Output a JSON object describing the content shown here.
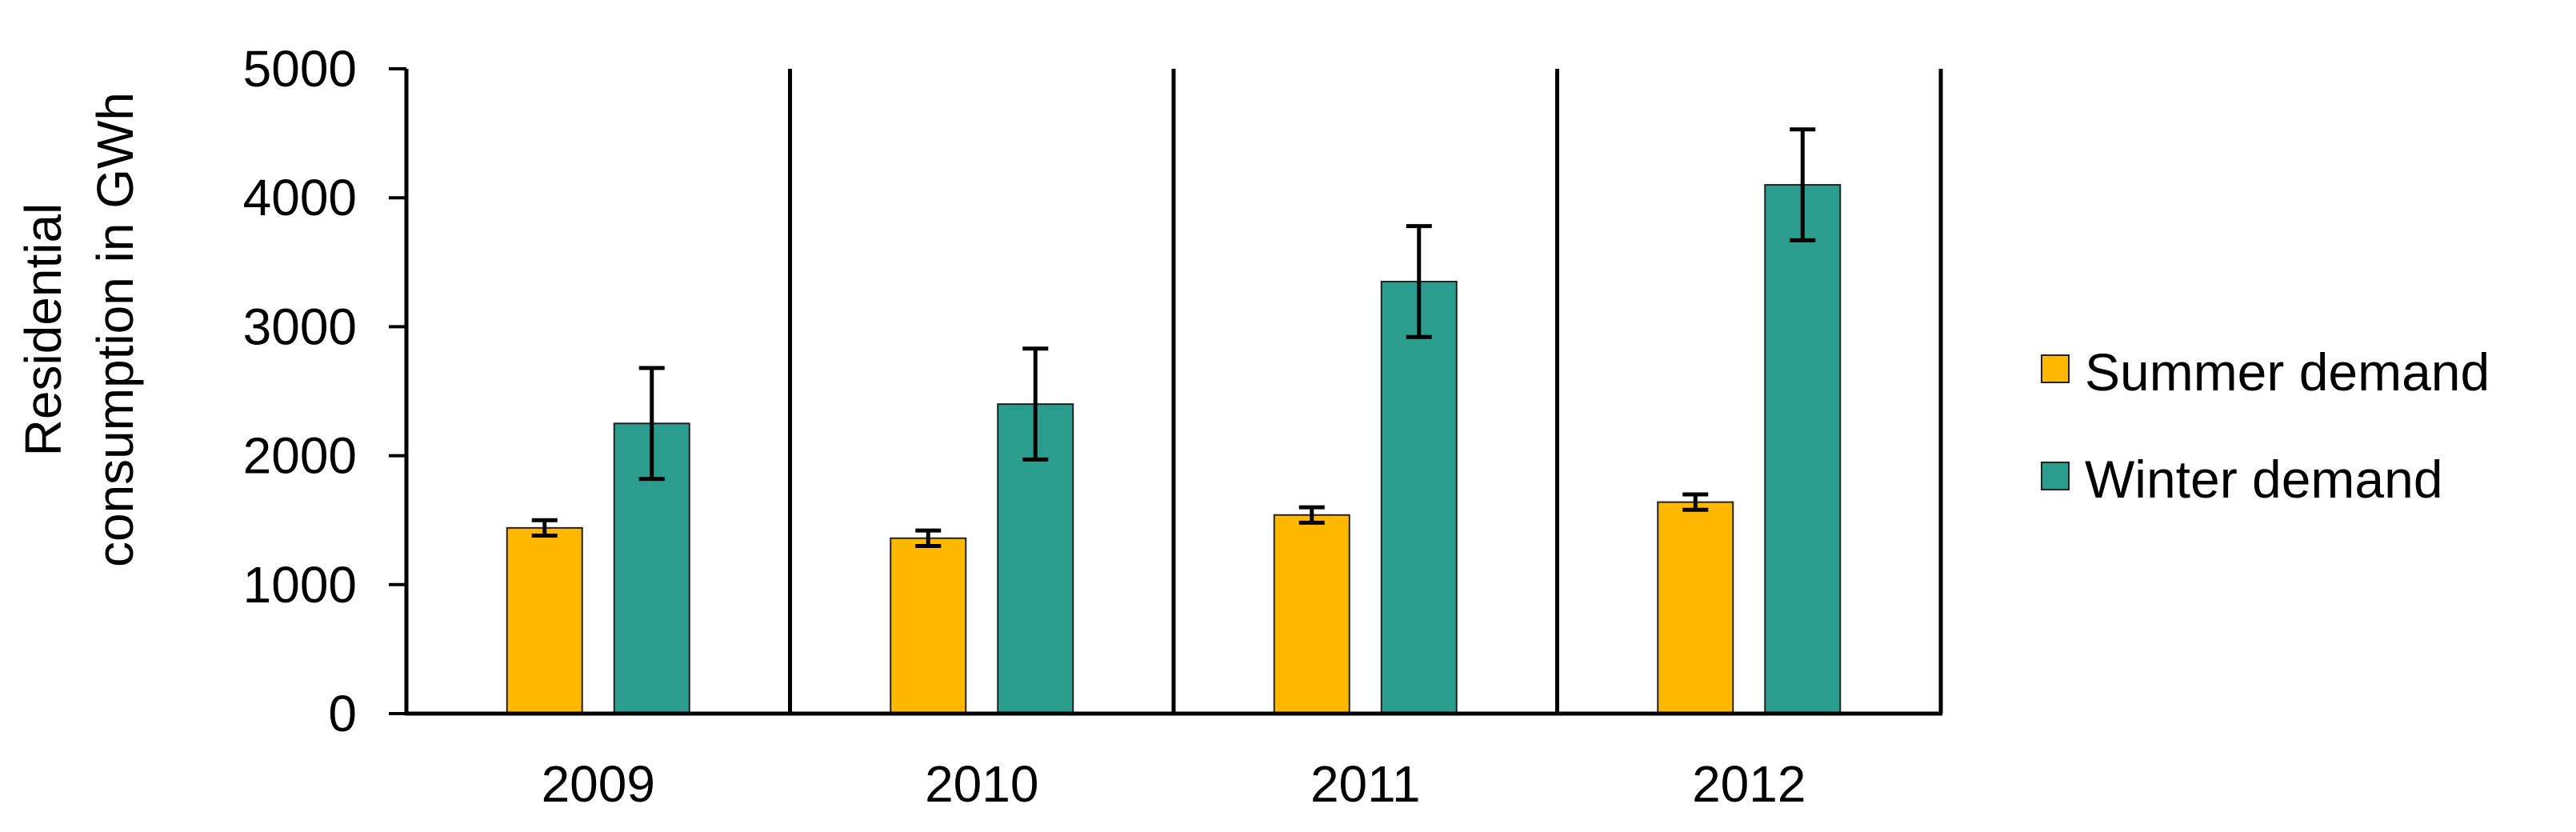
{
  "chart_data": {
    "type": "bar",
    "ylabel_lines": [
      "Residential",
      "consumption in GWh"
    ],
    "xlabel": "",
    "ylim": [
      0,
      5000
    ],
    "yticks": [
      0,
      1000,
      2000,
      3000,
      4000,
      5000
    ],
    "ytick_labels": [
      "0",
      "1000",
      "2000",
      "3000",
      "4000",
      "5000"
    ],
    "categories": [
      "2009",
      "2010",
      "2011",
      "2012"
    ],
    "series": [
      {
        "name": "Summer demand",
        "color": "#ffb700",
        "values": [
          1440,
          1360,
          1540,
          1640
        ],
        "errors": [
          60,
          60,
          60,
          60
        ]
      },
      {
        "name": "Winter demand",
        "color": "#2a9d8f",
        "values": [
          2250,
          2400,
          3350,
          4100
        ],
        "errors": [
          430,
          430,
          430,
          430
        ]
      }
    ],
    "grid": false,
    "group_separators": true,
    "legend_position": "right"
  }
}
